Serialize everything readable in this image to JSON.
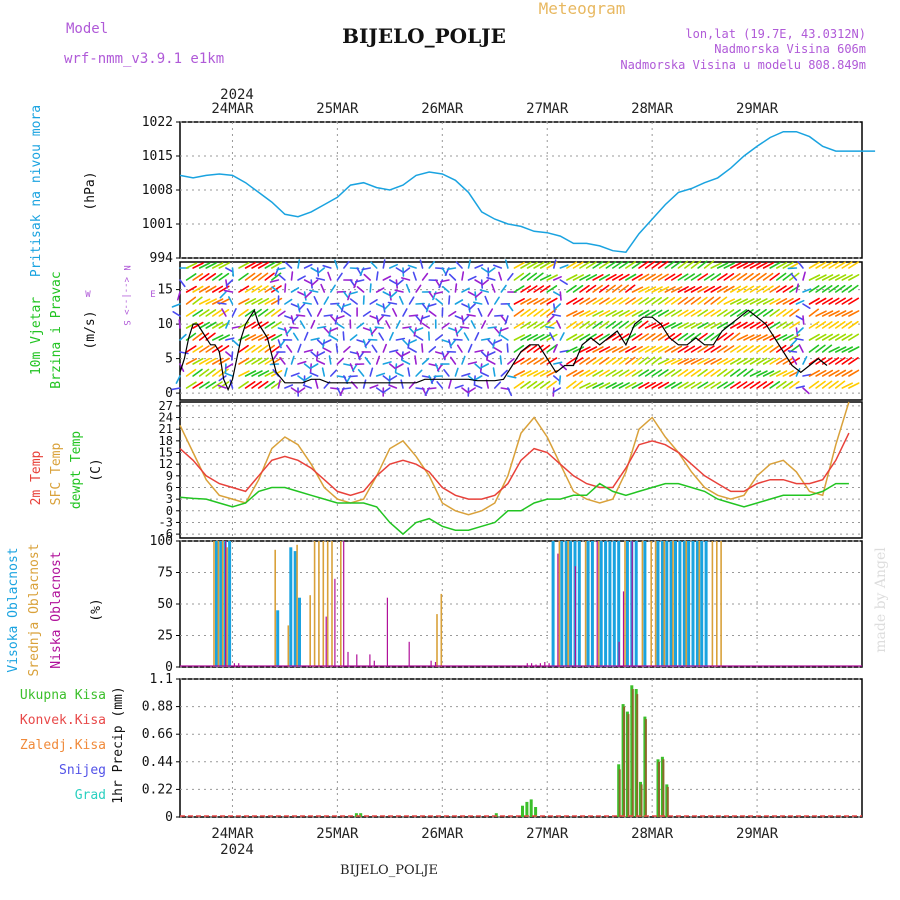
{
  "header": {
    "title": "BIJELO_POLJE",
    "subtitle": "Meteogram",
    "model_label": "Model",
    "model_name": "wrf-nmm_v3.9.1  e1km",
    "coords": "lon,lat (19.7E, 43.0312N)",
    "altitude": "Nadmorska Visina 606m",
    "model_altitude": "Nadmorska Visina u modelu 808.849m",
    "year": "2024",
    "watermark": "made by Angel",
    "footer_station": "BIJELO_POLJE"
  },
  "colors": {
    "pressure": "#1aa3e0",
    "temp2m": "#e8413a",
    "sfc_temp": "#d9a13a",
    "dewpoint": "#22c422",
    "high_cloud": "#1aa3e0",
    "mid_cloud": "#d9a13a",
    "low_cloud": "#b0109a",
    "precip_total": "#3bbf2a",
    "precip_conv": "#e84848",
    "precip_frozen": "#f08a3a",
    "snow": "#5252e8",
    "grad": "#2ad0c0",
    "wind_legend": "#b05ad8"
  },
  "chart_data": [
    {
      "type": "line",
      "name": "Pritisak na nivou mora",
      "ylabel": "(hPa)",
      "side_label": "Pritisak na nivou mora",
      "x_ticks": [
        "24MAR",
        "25MAR",
        "26MAR",
        "27MAR",
        "28MAR",
        "29MAR"
      ],
      "ylim": [
        994,
        1022
      ],
      "yticks": [
        994,
        1001,
        1008,
        1015,
        1022
      ],
      "grid": true,
      "series": [
        {
          "key": "pressure",
          "x": [
            0,
            3,
            6,
            9,
            12,
            15,
            18,
            21,
            24,
            27,
            30,
            33,
            36,
            39,
            42,
            45,
            48,
            51,
            54,
            57,
            60,
            63,
            66,
            69,
            72,
            75,
            78,
            81,
            84,
            87,
            90,
            93,
            96,
            99,
            102,
            105,
            108,
            111,
            114,
            117,
            120,
            123,
            126,
            129,
            132,
            135,
            138,
            141,
            144,
            147,
            150,
            153,
            156,
            159
          ],
          "values": [
            1011,
            1010.5,
            1011,
            1011.3,
            1011,
            1009.5,
            1007.5,
            1005.5,
            1003,
            1002.5,
            1003.5,
            1005,
            1006.5,
            1009,
            1009.5,
            1008.5,
            1008,
            1009,
            1011,
            1011.7,
            1011.3,
            1010,
            1007.5,
            1003.5,
            1002,
            1001,
            1000.5,
            999.5,
            999.2,
            998.5,
            997,
            997,
            996.5,
            995.5,
            995.2,
            999,
            1002,
            1005,
            1007.5,
            1008.3,
            1009.5,
            1010.5,
            1012.5,
            1015,
            1017,
            1018.8,
            1020,
            1020,
            1019,
            1017,
            1016,
            1016,
            1016,
            1016
          ]
        }
      ]
    },
    {
      "type": "line",
      "name": "10m Vjetar Brzina i Pravac",
      "ylabel": "(m/s)",
      "side_label_1": "10m Vjetar",
      "side_label_2": "Brzina i Pravac",
      "ylim": [
        -1,
        19
      ],
      "yticks": [
        0,
        5,
        10,
        15
      ],
      "grid": true,
      "series": [
        {
          "key": "wind_speed",
          "x": [
            0,
            1,
            2,
            3,
            4,
            5,
            6,
            7,
            8,
            9,
            10,
            11,
            12,
            13,
            14,
            15,
            16,
            17,
            18,
            19,
            20,
            22,
            24,
            26,
            28,
            30,
            32,
            34,
            36,
            38,
            40,
            42,
            44,
            46,
            48,
            50,
            52,
            54,
            56,
            58,
            60,
            62,
            64,
            66,
            68,
            70,
            72,
            74,
            76,
            78,
            80,
            82,
            84,
            86,
            88,
            90,
            92,
            94,
            96,
            98,
            100,
            102,
            104,
            106,
            108,
            110,
            112,
            114,
            116,
            118,
            120,
            122,
            124,
            126,
            128,
            130,
            132,
            134,
            136,
            138,
            140,
            142,
            144,
            146,
            148
          ],
          "values": [
            3,
            5,
            8,
            10,
            10,
            9,
            8,
            7,
            7,
            6,
            2,
            0.5,
            2,
            5,
            8,
            10,
            11,
            12,
            10,
            9,
            8,
            3,
            1.5,
            1.5,
            1.5,
            2,
            2,
            1.5,
            1.5,
            1.5,
            1.5,
            1.5,
            1.5,
            1.5,
            1.5,
            1.5,
            1.5,
            1.5,
            2,
            2,
            2,
            2,
            2,
            2,
            1.8,
            1.8,
            1.8,
            2,
            4,
            6,
            7,
            7,
            5,
            3,
            4,
            4,
            7,
            8,
            7,
            8,
            9,
            7,
            10,
            11,
            11,
            10,
            8,
            7,
            7,
            8,
            7,
            7,
            9,
            10,
            11,
            12,
            11,
            10,
            8,
            6,
            4,
            3,
            4,
            5,
            4
          ]
        }
      ]
    },
    {
      "type": "line",
      "name": "Temperatura",
      "ylabel": "(C)",
      "side_label_2m": "2m Temp",
      "side_label_sfc": "SFC Temp",
      "side_label_dew": "dewpt Temp",
      "ylim": [
        -7,
        28
      ],
      "yticks": [
        -6,
        -3,
        0,
        3,
        6,
        9,
        12,
        15,
        18,
        21,
        24,
        27
      ],
      "grid": true,
      "series": [
        {
          "key": "temp2m",
          "x": [
            0,
            3,
            6,
            9,
            12,
            15,
            18,
            21,
            24,
            27,
            30,
            33,
            36,
            39,
            42,
            45,
            48,
            51,
            54,
            57,
            60,
            63,
            66,
            69,
            72,
            75,
            78,
            81,
            84,
            87,
            90,
            93,
            96,
            99,
            102,
            105,
            108,
            111,
            114,
            117,
            120,
            123,
            126,
            129,
            132,
            135,
            138,
            141,
            144,
            147,
            150,
            153
          ],
          "values": [
            16,
            13,
            9,
            7,
            6,
            5,
            9,
            13,
            14,
            13,
            11,
            8,
            5,
            4,
            5,
            9,
            12,
            13,
            12,
            10,
            6,
            4,
            3,
            3,
            4,
            7,
            13,
            16,
            15,
            12,
            9,
            7,
            6,
            6,
            11,
            17,
            18,
            17,
            15,
            12,
            9,
            7,
            5,
            5,
            7,
            8,
            8,
            7,
            7,
            8,
            13,
            20
          ]
        },
        {
          "key": "sfc_temp",
          "x": [
            0,
            3,
            6,
            9,
            12,
            15,
            18,
            21,
            24,
            27,
            30,
            33,
            36,
            39,
            42,
            45,
            48,
            51,
            54,
            57,
            60,
            63,
            66,
            69,
            72,
            75,
            78,
            81,
            84,
            87,
            90,
            93,
            96,
            99,
            102,
            105,
            108,
            111,
            114,
            117,
            120,
            123,
            126,
            129,
            132,
            135,
            138,
            141,
            144,
            147,
            150,
            153
          ],
          "values": [
            22,
            15,
            8,
            4,
            3,
            2,
            8,
            16,
            19,
            17,
            12,
            6,
            3,
            2,
            3,
            9,
            16,
            18,
            14,
            9,
            2,
            0,
            -1,
            0,
            2,
            9,
            20,
            24,
            19,
            12,
            5,
            3,
            2,
            3,
            10,
            21,
            24,
            19,
            15,
            10,
            6,
            4,
            3,
            4,
            9,
            12,
            13,
            10,
            5,
            4,
            17,
            28
          ]
        },
        {
          "key": "dewpoint",
          "x": [
            0,
            3,
            6,
            9,
            12,
            15,
            18,
            21,
            24,
            27,
            30,
            33,
            36,
            39,
            42,
            45,
            48,
            51,
            54,
            57,
            60,
            63,
            66,
            69,
            72,
            75,
            78,
            81,
            84,
            87,
            90,
            93,
            96,
            99,
            102,
            105,
            108,
            111,
            114,
            117,
            120,
            123,
            126,
            129,
            132,
            135,
            138,
            141,
            144,
            147,
            150,
            153
          ],
          "values": [
            3.5,
            3.2,
            3,
            2,
            1,
            2,
            5,
            6,
            6,
            5,
            4,
            3,
            2,
            2,
            2,
            1,
            -3,
            -6,
            -3,
            -2,
            -4,
            -5,
            -5,
            -4,
            -3,
            0,
            0,
            2,
            3,
            3,
            4,
            4,
            7,
            5,
            4,
            5,
            6,
            7,
            7,
            6,
            5,
            3,
            2,
            1,
            2,
            3,
            4,
            4,
            4,
            5,
            7,
            7
          ]
        }
      ]
    },
    {
      "type": "bar",
      "name": "Oblacnost",
      "ylabel": "(%)",
      "side_label_high": "Visoka Oblacnost",
      "side_label_mid": "Srednja Oblacnost",
      "side_label_low": "Niska Oblacnost",
      "ylim": [
        0,
        100
      ],
      "yticks": [
        0,
        25,
        50,
        75,
        100
      ],
      "grid": true,
      "series": [
        {
          "key": "high_cloud",
          "x": [
            8,
            9,
            10,
            11,
            22,
            25,
            26,
            27,
            85,
            87,
            88,
            89,
            90,
            91,
            93,
            94,
            96,
            97,
            98,
            99,
            100,
            102,
            103,
            104,
            106,
            109,
            110,
            111,
            112,
            113,
            114,
            115,
            116,
            117,
            118,
            119,
            120
          ],
          "values": [
            100,
            100,
            100,
            100,
            45,
            95,
            92,
            55,
            100,
            100,
            100,
            100,
            100,
            100,
            100,
            100,
            100,
            100,
            100,
            100,
            100,
            100,
            100,
            100,
            100,
            100,
            100,
            100,
            100,
            100,
            100,
            100,
            100,
            100,
            100,
            100,
            100
          ]
        },
        {
          "key": "mid_cloud",
          "x": [
            7,
            8,
            9,
            10,
            21,
            24,
            26,
            29,
            30,
            31,
            32,
            33,
            34,
            36,
            58,
            59,
            86,
            88,
            92,
            95,
            101,
            105,
            107,
            108,
            110,
            112,
            115,
            118,
            121,
            122,
            123
          ],
          "values": [
            100,
            100,
            100,
            95,
            93,
            33,
            97,
            57,
            100,
            100,
            100,
            100,
            100,
            100,
            42,
            58,
            100,
            100,
            100,
            100,
            100,
            100,
            100,
            100,
            100,
            100,
            100,
            100,
            100,
            100,
            100
          ]
        },
        {
          "key": "low_cloud",
          "x": [
            10,
            12,
            13,
            33,
            35,
            37,
            38,
            40,
            43,
            44,
            47,
            52,
            57,
            58,
            79,
            80,
            81,
            82,
            83,
            84,
            86,
            90,
            95,
            100,
            101,
            103
          ],
          "values": [
            100,
            3,
            3,
            40,
            70,
            100,
            12,
            10,
            10,
            5,
            55,
            20,
            5,
            4,
            3,
            3,
            2,
            3,
            4,
            3,
            90,
            80,
            100,
            20,
            60,
            100
          ]
        }
      ]
    },
    {
      "type": "bar",
      "name": "1hr Precip",
      "ylabel": "1hr Precip (mm)",
      "legend_total": "Ukupna  Kisa",
      "legend_conv": "Konvek.Kisa",
      "legend_frozen": "Zaledj.Kisa",
      "legend_snow": "Snijeg",
      "legend_grad": "Grad",
      "ylim": [
        0,
        1.1
      ],
      "yticks": [
        0,
        0.22,
        0.44,
        0.66,
        0.88,
        1.1
      ],
      "grid": true,
      "series": [
        {
          "key": "precip_total",
          "x": [
            40,
            41,
            72,
            78,
            79,
            80,
            81,
            100,
            101,
            102,
            103,
            104,
            105,
            106,
            109,
            110,
            111
          ],
          "values": [
            0.03,
            0.03,
            0.03,
            0.09,
            0.12,
            0.14,
            0.08,
            0.42,
            0.9,
            0.84,
            1.05,
            1.02,
            0.28,
            0.8,
            0.46,
            0.48,
            0.26
          ]
        },
        {
          "key": "precip_conv",
          "x": [
            100,
            101,
            102,
            103,
            104,
            105,
            106,
            109,
            110,
            111
          ],
          "values": [
            0.38,
            0.88,
            0.82,
            1.02,
            0.98,
            0.26,
            0.78,
            0.44,
            0.46,
            0.24
          ]
        }
      ]
    }
  ],
  "wind_legend": {
    "n": "N",
    "s": "S",
    "e": "E",
    "w": "W",
    "arrow": "<--|-->"
  }
}
